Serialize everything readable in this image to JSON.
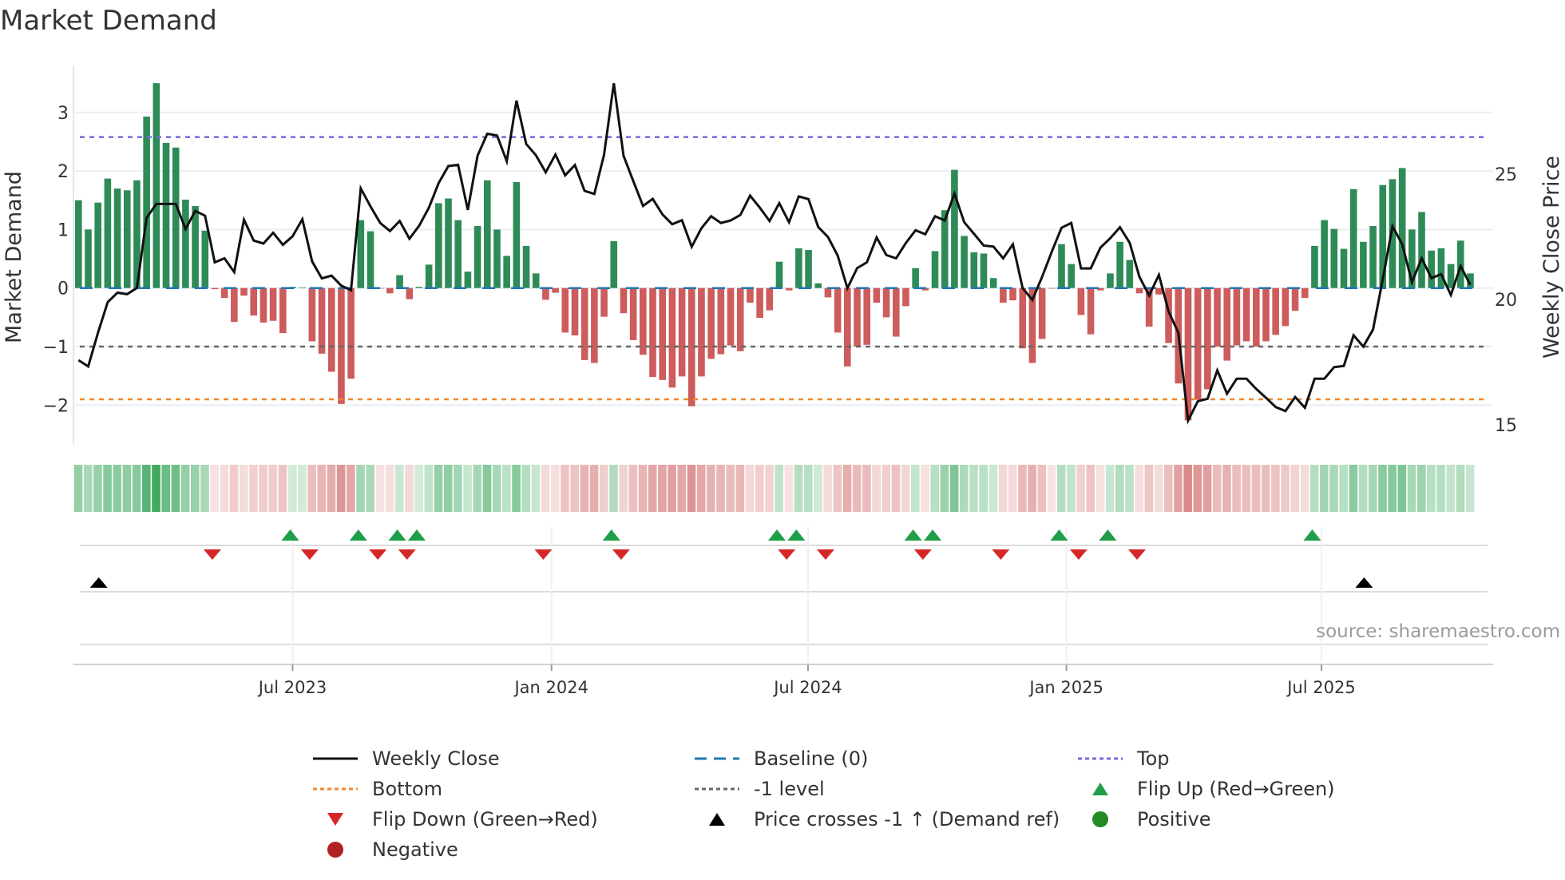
{
  "title": "Market Demand",
  "source": "source: sharemaestro.com",
  "colors": {
    "positive_bar": "#2e8b57",
    "negative_bar": "#cd5c5c",
    "top": "#7b68d8",
    "bottom": "#f0892b",
    "minus_one": "#666666",
    "baseline": "#1f77b4",
    "flip_up": "#1f9e48",
    "flip_down": "#d62728",
    "price_cross": "#000000",
    "positive_dot": "#228b22",
    "negative_dot": "#b22222"
  },
  "legend": [
    {
      "label": "Weekly Close",
      "symbol": "solid-line",
      "color": "#111111"
    },
    {
      "label": "Baseline (0)",
      "symbol": "dash-line",
      "color": "#1f77b4"
    },
    {
      "label": "Top",
      "symbol": "dot-line",
      "color": "#7b68d8"
    },
    {
      "label": "Bottom",
      "symbol": "dot-line",
      "color": "#f0892b"
    },
    {
      "label": "-1 level",
      "symbol": "dot-line",
      "color": "#666666"
    },
    {
      "label": "Flip Up (Red→Green)",
      "symbol": "triangle-up",
      "color": "#1f9e48"
    },
    {
      "label": "Flip Down (Green→Red)",
      "symbol": "triangle-down",
      "color": "#d62728"
    },
    {
      "label": "Price crosses -1 ↑ (Demand ref)",
      "symbol": "triangle-up",
      "color": "#000000"
    },
    {
      "label": "Positive",
      "symbol": "circle",
      "color": "#228b22"
    },
    {
      "label": "Negative",
      "symbol": "circle",
      "color": "#b22222"
    }
  ],
  "chart_data": {
    "type": "bar",
    "title": "Market Demand",
    "ylabel": "Market Demand",
    "y2label": "Weekly Close Price",
    "ylim": [
      -2.68,
      3.8
    ],
    "y2lim": [
      14.4,
      28.9
    ],
    "yticks": [
      {
        "label": "−2",
        "value": -2
      },
      {
        "label": "−1",
        "value": -1
      },
      {
        "label": "0",
        "value": 0
      },
      {
        "label": "1",
        "value": 1
      },
      {
        "label": "2",
        "value": 2
      },
      {
        "label": "3",
        "value": 3
      }
    ],
    "y2ticks": [
      {
        "label": "15",
        "value": 15
      },
      {
        "label": "20",
        "value": 20
      },
      {
        "label": "25",
        "value": 25
      }
    ],
    "xticks": [
      {
        "label": "Jul 2023",
        "week_index": 22.0
      },
      {
        "label": "Jan 2024",
        "week_index": 48.6
      },
      {
        "label": "Jul 2024",
        "week_index": 74.95
      },
      {
        "label": "Jan 2025",
        "week_index": 101.5
      },
      {
        "label": "Jul 2025",
        "week_index": 127.7
      }
    ],
    "reference_lines": {
      "top": 2.58,
      "bottom": -1.9,
      "minus_one": -1,
      "baseline": 0
    },
    "demand": [
      1.5,
      1.0,
      1.46,
      1.87,
      1.7,
      1.67,
      1.84,
      2.93,
      3.5,
      2.48,
      2.4,
      1.51,
      1.4,
      0.98,
      -0.02,
      -0.17,
      -0.58,
      -0.13,
      -0.47,
      -0.59,
      -0.56,
      -0.77,
      0.02,
      0.01,
      -0.91,
      -1.12,
      -1.43,
      -1.98,
      -1.55,
      1.16,
      0.97,
      -0.01,
      -0.09,
      0.22,
      -0.19,
      0.02,
      0.4,
      1.45,
      1.53,
      1.16,
      0.28,
      1.06,
      1.84,
      1.0,
      0.55,
      1.81,
      0.72,
      0.25,
      -0.2,
      -0.08,
      -0.76,
      -0.81,
      -1.23,
      -1.28,
      -0.49,
      0.8,
      -0.43,
      -0.89,
      -1.14,
      -1.52,
      -1.57,
      -1.7,
      -1.51,
      -2.02,
      -1.51,
      -1.21,
      -1.13,
      -0.98,
      -1.08,
      -0.25,
      -0.51,
      -0.38,
      0.45,
      -0.04,
      0.68,
      0.65,
      0.08,
      -0.16,
      -0.76,
      -1.34,
      -1.0,
      -0.97,
      -0.25,
      -0.5,
      -0.83,
      -0.31,
      0.34,
      -0.04,
      0.63,
      1.33,
      2.02,
      0.89,
      0.61,
      0.59,
      0.17,
      -0.25,
      -0.21,
      -1.03,
      -1.28,
      -0.87,
      -0.01,
      0.75,
      0.41,
      -0.46,
      -0.79,
      -0.04,
      0.25,
      0.79,
      0.48,
      -0.09,
      -0.66,
      -0.11,
      -0.94,
      -1.63,
      -2.26,
      -1.91,
      -1.73,
      -1.0,
      -1.24,
      -0.98,
      -0.91,
      -1.0,
      -0.91,
      -0.8,
      -0.65,
      -0.39,
      -0.17,
      0.72,
      1.16,
      1.01,
      0.67,
      1.69,
      0.79,
      1.06,
      1.76,
      1.86,
      2.05,
      1.0,
      1.3,
      0.64,
      0.68,
      0.41,
      0.81,
      0.25
    ],
    "weekly_close": [
      17.58,
      17.33,
      18.67,
      19.89,
      20.27,
      20.21,
      20.46,
      23.26,
      23.81,
      23.81,
      23.81,
      22.81,
      23.53,
      23.34,
      21.48,
      21.64,
      21.09,
      23.18,
      22.35,
      22.23,
      22.66,
      22.18,
      22.52,
      23.2,
      21.52,
      20.84,
      20.95,
      20.55,
      20.37,
      24.43,
      23.71,
      23.05,
      22.73,
      23.13,
      22.42,
      22.94,
      23.66,
      24.64,
      25.32,
      25.37,
      23.57,
      25.73,
      26.61,
      26.54,
      25.51,
      27.93,
      26.2,
      25.75,
      25.07,
      25.78,
      24.95,
      25.36,
      24.33,
      24.21,
      25.78,
      28.62,
      25.73,
      24.72,
      23.73,
      24.01,
      23.39,
      23.0,
      23.16,
      22.1,
      22.84,
      23.32,
      23.05,
      23.15,
      23.37,
      24.14,
      23.66,
      23.13,
      23.84,
      23.08,
      24.11,
      24.0,
      22.89,
      22.49,
      21.75,
      20.45,
      21.25,
      21.48,
      22.47,
      21.77,
      21.64,
      22.25,
      22.76,
      22.6,
      23.32,
      23.15,
      24.22,
      23.08,
      22.62,
      22.15,
      22.11,
      21.64,
      22.2,
      20.45,
      19.98,
      20.9,
      21.91,
      22.86,
      23.05,
      21.24,
      21.24,
      22.07,
      22.44,
      22.88,
      22.26,
      20.9,
      20.16,
      20.98,
      19.52,
      18.67,
      15.17,
      15.94,
      16.04,
      17.17,
      16.24,
      16.84,
      16.84,
      16.43,
      16.08,
      15.71,
      15.55,
      16.11,
      15.68,
      16.84,
      16.84,
      17.3,
      17.35,
      18.57,
      18.12,
      18.8,
      20.8,
      22.92,
      22.2,
      20.69,
      21.64,
      20.85,
      21.01,
      20.18,
      21.33,
      20.58
    ],
    "price_cross_up_indices": [
      2,
      132
    ]
  }
}
